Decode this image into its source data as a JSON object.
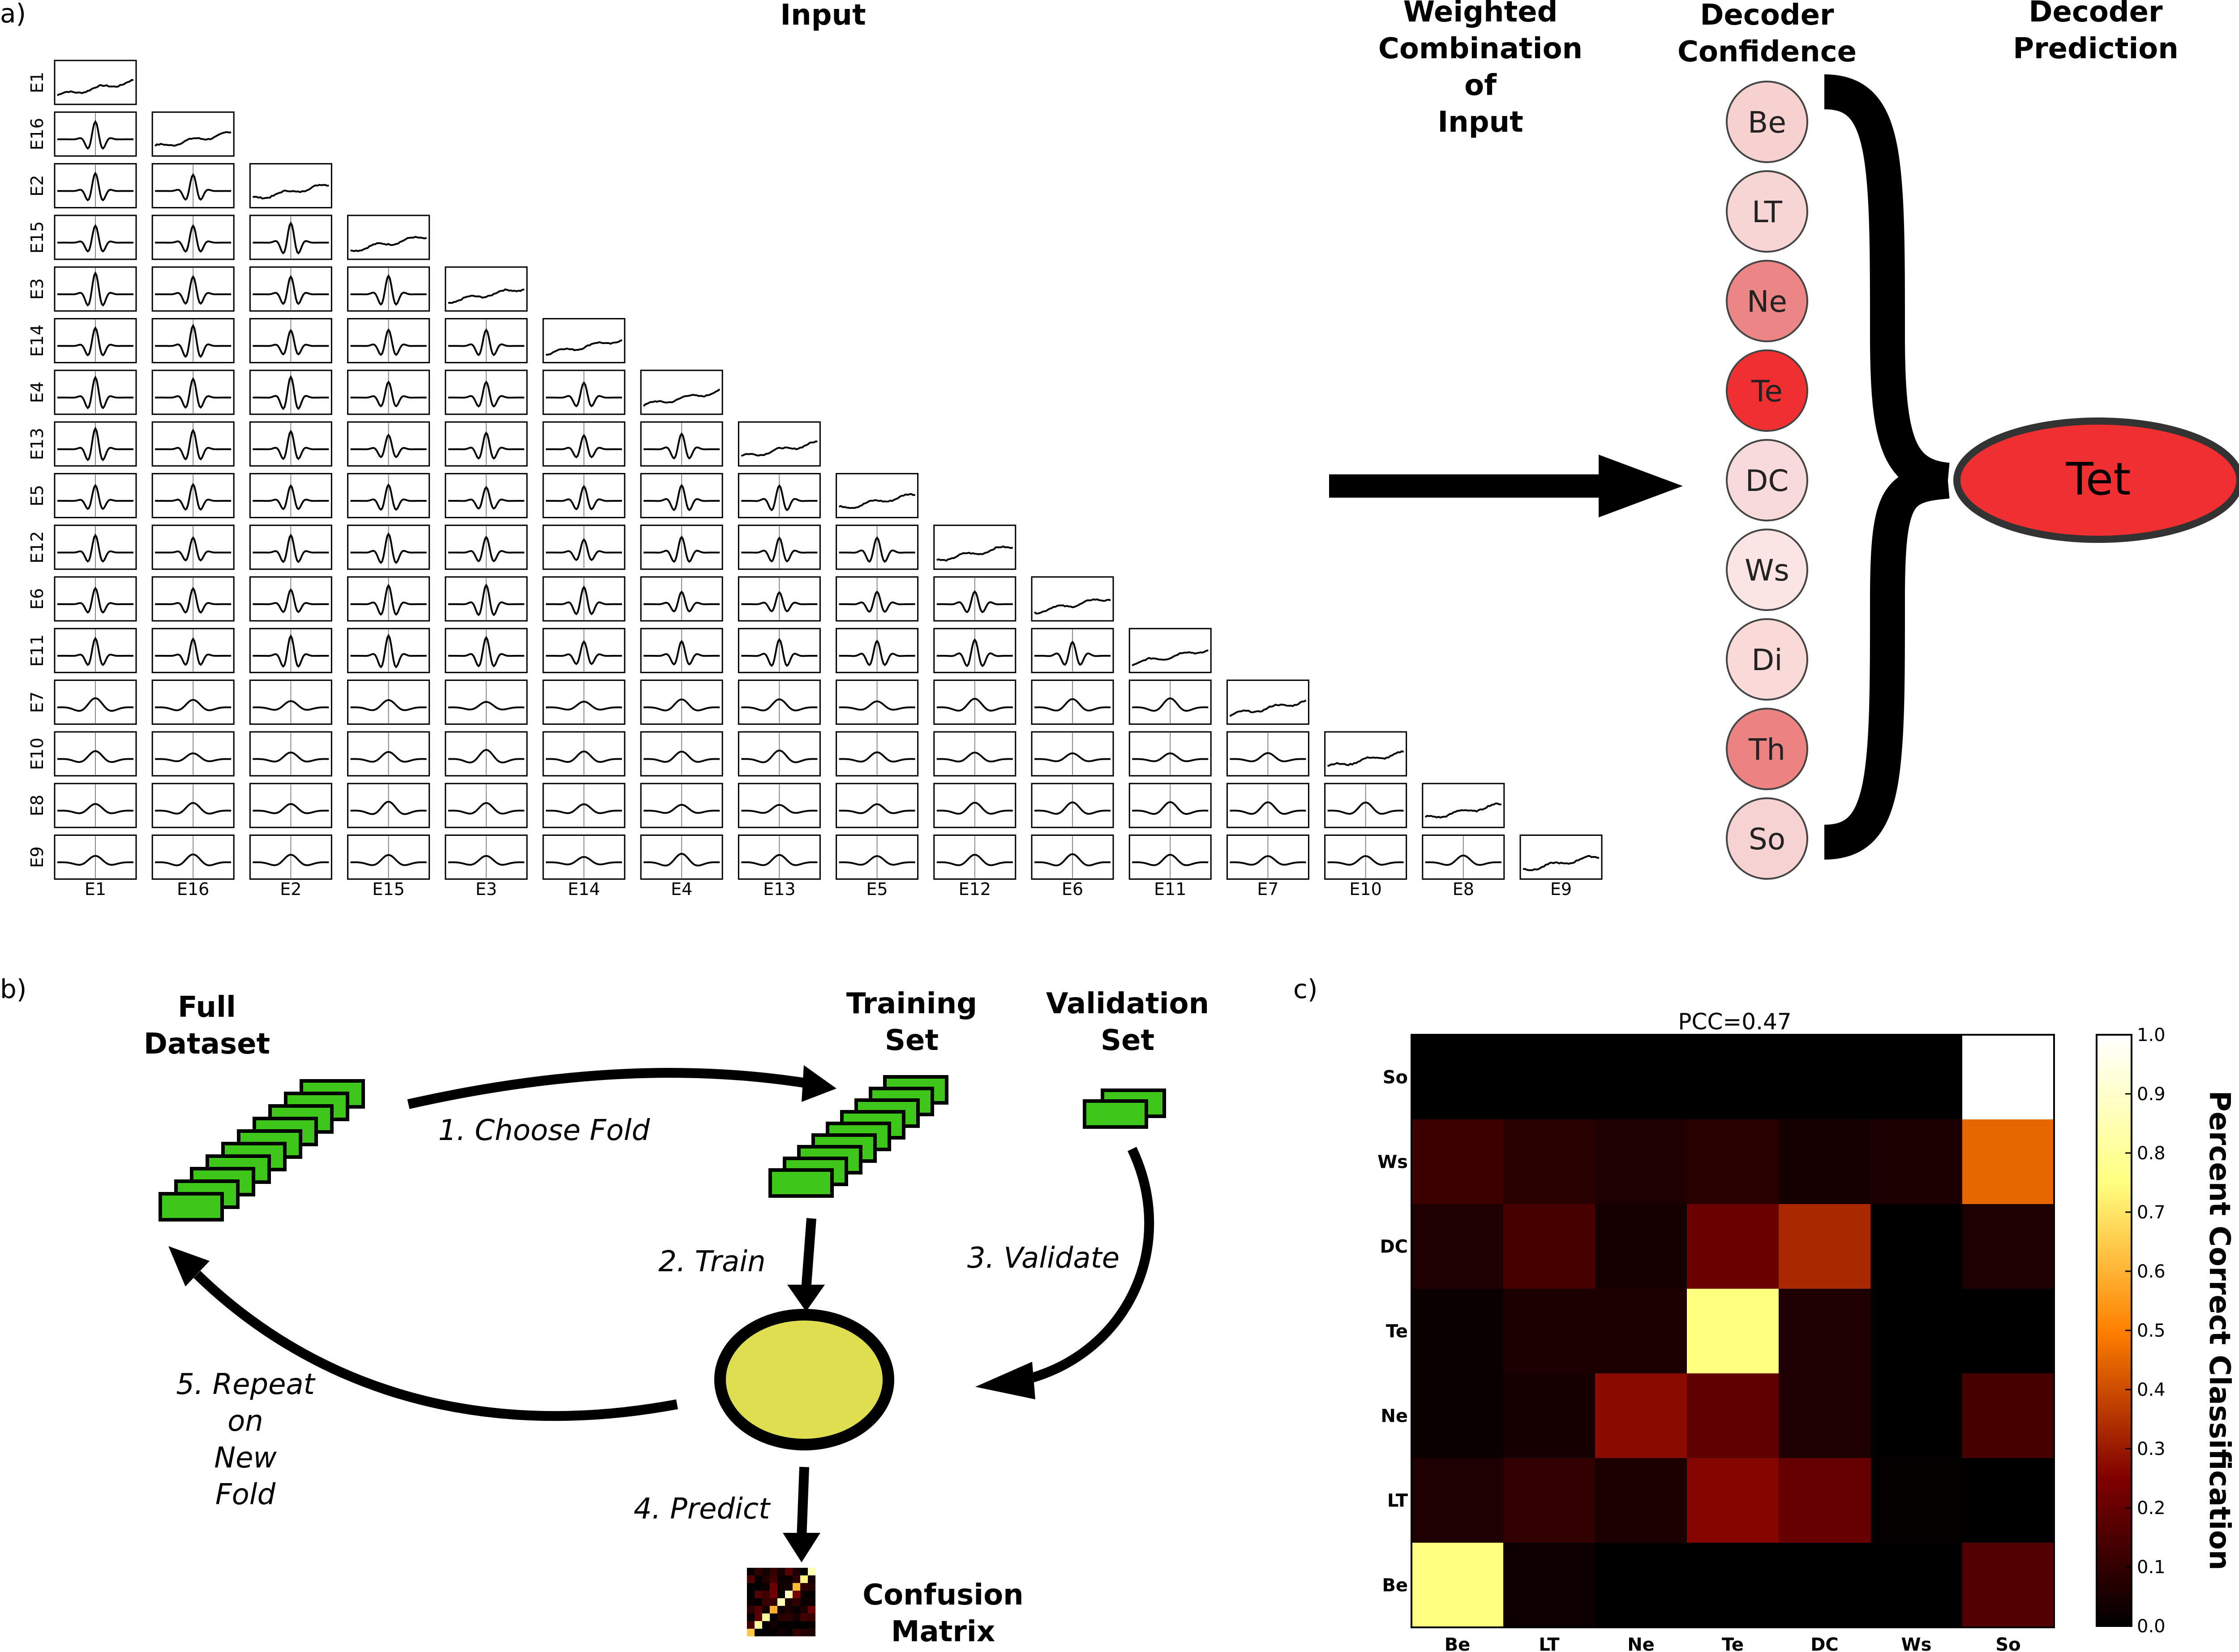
{
  "panel_a": {
    "label": "a)",
    "input_title": "Input",
    "weighted_title": [
      "Weighted",
      "Combination",
      "of",
      "Input"
    ],
    "confidence_title": [
      "Decoder",
      "Confidence"
    ],
    "prediction_title": [
      "Decoder",
      "Prediction"
    ],
    "electrodes": [
      "E1",
      "E16",
      "E2",
      "E15",
      "E3",
      "E14",
      "E4",
      "E13",
      "E5",
      "E12",
      "E6",
      "E11",
      "E7",
      "E10",
      "E8",
      "E9"
    ],
    "classes": [
      {
        "label": "Be",
        "color": "#f7d0d0"
      },
      {
        "label": "LT",
        "color": "#f7d5d5"
      },
      {
        "label": "Ne",
        "color": "#ec8585"
      },
      {
        "label": "Te",
        "color": "#f03030"
      },
      {
        "label": "DC",
        "color": "#f8dada"
      },
      {
        "label": "Ws",
        "color": "#fbe4e4"
      },
      {
        "label": "Di",
        "color": "#fad9d9"
      },
      {
        "label": "Th",
        "color": "#ec8282"
      },
      {
        "label": "So",
        "color": "#f7d2d2"
      }
    ],
    "prediction": {
      "label": "Tet",
      "color": "#f03030"
    }
  },
  "panel_b": {
    "label": "b)",
    "full_dataset": [
      "Full",
      "Dataset"
    ],
    "training_set": [
      "Training",
      "Set"
    ],
    "validation_set": [
      "Validation",
      "Set"
    ],
    "step1": "1. Choose Fold",
    "step2": "2. Train",
    "step3": "3. Validate",
    "step4": "4. Predict",
    "step5": [
      "5. Repeat",
      "on",
      "New",
      "Fold"
    ],
    "confusion": [
      "Confusion",
      "Matrix"
    ],
    "block_color": "#3fc61a",
    "model_color": "#dede50"
  },
  "panel_c": {
    "label": "c)",
    "chart_data": {
      "type": "heatmap",
      "title": "PCC=0.47",
      "x_labels": [
        "Be",
        "LT",
        "Ne",
        "Te",
        "DC",
        "Ws",
        "So"
      ],
      "y_labels_top_to_bottom": [
        "So",
        "Ws",
        "DC",
        "Te",
        "Ne",
        "LT",
        "Be"
      ],
      "values_top_to_bottom": [
        [
          0.0,
          0.0,
          0.0,
          0.0,
          0.0,
          0.0,
          1.0
        ],
        [
          0.12,
          0.08,
          0.06,
          0.08,
          0.04,
          0.05,
          0.45
        ],
        [
          0.06,
          0.14,
          0.04,
          0.21,
          0.33,
          0.0,
          0.06
        ],
        [
          0.02,
          0.05,
          0.05,
          0.75,
          0.06,
          0.0,
          0.0
        ],
        [
          0.02,
          0.04,
          0.27,
          0.19,
          0.06,
          0.0,
          0.14
        ],
        [
          0.06,
          0.1,
          0.05,
          0.26,
          0.2,
          0.01,
          0.0
        ],
        [
          0.75,
          0.03,
          0.0,
          0.0,
          0.0,
          0.0,
          0.16
        ]
      ],
      "colorbar_label": "Percent Correct Classification",
      "colorbar_ticks": [
        "0.0",
        "0.1",
        "0.2",
        "0.3",
        "0.4",
        "0.5",
        "0.6",
        "0.7",
        "0.8",
        "0.9",
        "1.0"
      ],
      "vmin": 0,
      "vmax": 1,
      "colormap": "afmhot"
    }
  }
}
